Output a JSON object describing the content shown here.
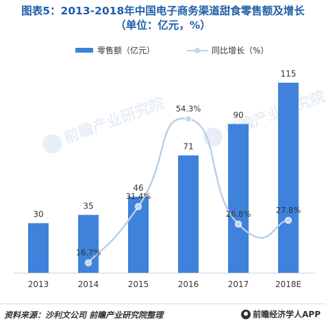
{
  "title_line1": "图表5：2013-2018年中国电子商务渠道甜食零售额及增长",
  "title_line2": "（单位：亿元，%）",
  "legend": {
    "bar_label": "零售额（亿元）",
    "line_label": "同比增长（%）"
  },
  "colors": {
    "bar": "#3f82db",
    "line": "#b8cfe8",
    "marker": "#c4d6ec",
    "title": "#1f5fa6"
  },
  "chart_data": {
    "type": "bar",
    "categories": [
      "2013",
      "2014",
      "2015",
      "2016",
      "2017",
      "2018E"
    ],
    "series": [
      {
        "name": "零售额（亿元）",
        "type": "bar",
        "values": [
          30,
          35,
          46,
          71,
          90,
          115
        ],
        "labels": [
          "30",
          "35",
          "46",
          "71",
          "90",
          "115"
        ]
      },
      {
        "name": "同比增长（%）",
        "type": "line",
        "smooth": true,
        "values": [
          null,
          16.7,
          31.4,
          54.3,
          26.8,
          27.8
        ],
        "labels": [
          "",
          "16.7%",
          "31.4%",
          "54.3%",
          "26.8%",
          "27.8%"
        ]
      }
    ]
  },
  "watermark_text": "前瞻产业研究院",
  "footer": {
    "source": "资料来源：沙利文公司 前瞻产业研究院整理",
    "brand": "前瞻经济学人APP"
  }
}
